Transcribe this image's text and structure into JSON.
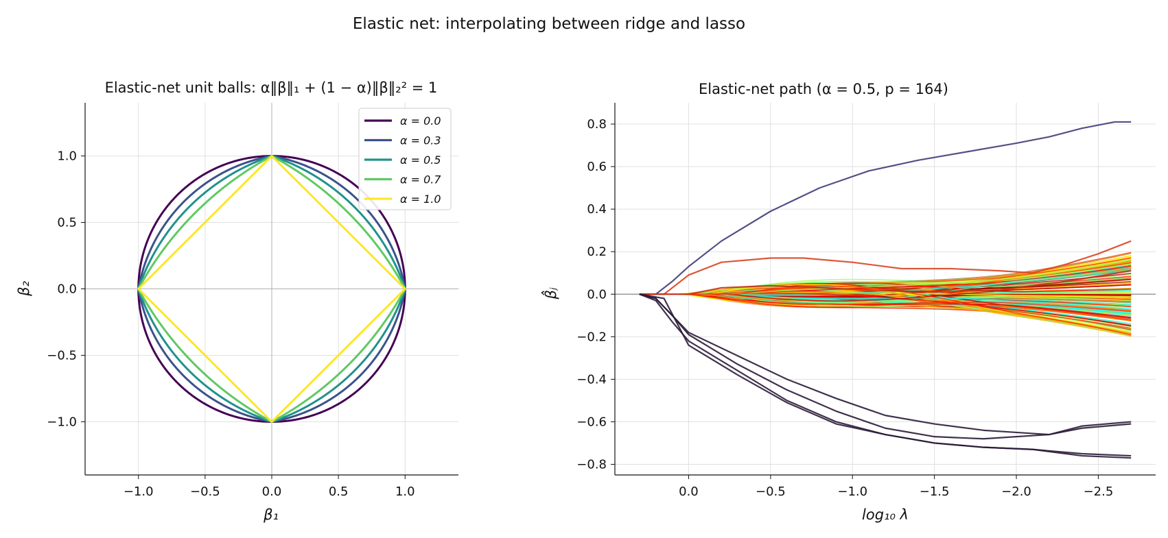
{
  "suptitle": "Elastic net: interpolating between ridge and lasso",
  "chart_data": [
    {
      "type": "line",
      "title": "Elastic-net unit balls:  α‖β‖₁ + (1 − α)‖β‖₂² = 1",
      "xlabel": "β₁",
      "ylabel": "β₂",
      "xlim": [
        -1.4,
        1.4
      ],
      "ylim": [
        -1.4,
        1.4
      ],
      "xticks": [
        -1.0,
        -0.5,
        0.0,
        0.5,
        1.0
      ],
      "xtick_labels": [
        "−1.0",
        "−0.5",
        "0.0",
        "0.5",
        "1.0"
      ],
      "yticks": [
        1.0,
        0.5,
        0.0,
        -0.5,
        -1.0
      ],
      "ytick_labels": [
        "1.0",
        "0.5",
        "0.0",
        "−0.5",
        "−1.0"
      ],
      "grid": true,
      "legend_position": "top-right",
      "series": [
        {
          "name": "α = 0.0",
          "alpha": 0.0,
          "color": "#440154"
        },
        {
          "name": "α = 0.3",
          "alpha": 0.3,
          "color": "#3b528b"
        },
        {
          "name": "α = 0.5",
          "alpha": 0.5,
          "color": "#21918c"
        },
        {
          "name": "α = 0.7",
          "alpha": 0.7,
          "color": "#5ec962"
        },
        {
          "name": "α = 1.0",
          "alpha": 1.0,
          "color": "#fde725"
        }
      ]
    },
    {
      "type": "line",
      "title": "Elastic-net path  (α = 0.5, p = 164)",
      "xlabel": "log₁₀ λ",
      "ylabel": "β̂ⱼ",
      "xlim": [
        0.45,
        -2.85
      ],
      "ylim": [
        -0.85,
        0.9
      ],
      "xaxis_inverted": true,
      "xticks": [
        0.0,
        -0.5,
        -1.0,
        -1.5,
        -2.0,
        -2.5
      ],
      "xtick_labels": [
        "0.0",
        "−0.5",
        "−1.0",
        "−1.5",
        "−2.0",
        "−2.5"
      ],
      "yticks": [
        0.8,
        0.6,
        0.4,
        0.2,
        0.0,
        -0.2,
        -0.4,
        -0.6,
        -0.8
      ],
      "ytick_labels": [
        "0.8",
        "0.6",
        "0.4",
        "0.2",
        "0.0",
        "−0.2",
        "−0.4",
        "−0.6",
        "−0.8"
      ],
      "grid": true,
      "approximate_series_count": 164,
      "highlighted_series": [
        {
          "color": "#3f3d7a",
          "points": [
            [
              0.3,
              0
            ],
            [
              0.2,
              0
            ],
            [
              0.1,
              0.06
            ],
            [
              0,
              0.13
            ],
            [
              -0.2,
              0.25
            ],
            [
              -0.5,
              0.39
            ],
            [
              -0.8,
              0.5
            ],
            [
              -1.1,
              0.58
            ],
            [
              -1.4,
              0.63
            ],
            [
              -1.7,
              0.67
            ],
            [
              -2.0,
              0.71
            ],
            [
              -2.2,
              0.74
            ],
            [
              -2.4,
              0.78
            ],
            [
              -2.6,
              0.81
            ],
            [
              -2.7,
              0.81
            ]
          ]
        },
        {
          "color": "#d94520",
          "points": [
            [
              0.3,
              0
            ],
            [
              0.15,
              0
            ],
            [
              0,
              0.09
            ],
            [
              -0.2,
              0.15
            ],
            [
              -0.5,
              0.17
            ],
            [
              -0.7,
              0.17
            ],
            [
              -1.0,
              0.15
            ],
            [
              -1.3,
              0.12
            ],
            [
              -1.6,
              0.12
            ],
            [
              -1.9,
              0.11
            ],
            [
              -2.1,
              0.1
            ],
            [
              -2.3,
              0.14
            ],
            [
              -2.5,
              0.19
            ],
            [
              -2.7,
              0.25
            ]
          ]
        },
        {
          "color": "#c0301a",
          "points": [
            [
              0.3,
              0
            ],
            [
              0,
              0
            ],
            [
              -0.2,
              0.03
            ],
            [
              -0.5,
              0.04
            ],
            [
              -0.8,
              0.03
            ],
            [
              -1.1,
              0.02
            ],
            [
              -1.5,
              0.01
            ],
            [
              -1.9,
              0.02
            ],
            [
              -2.3,
              0.06
            ],
            [
              -2.7,
              0.11
            ]
          ]
        },
        {
          "color": "#2b1b38",
          "points": [
            [
              0.3,
              0
            ],
            [
              0.2,
              -0.02
            ],
            [
              0.1,
              -0.1
            ],
            [
              0,
              -0.19
            ],
            [
              -0.3,
              -0.33
            ],
            [
              -0.6,
              -0.45
            ],
            [
              -0.9,
              -0.55
            ],
            [
              -1.2,
              -0.63
            ],
            [
              -1.5,
              -0.67
            ],
            [
              -1.8,
              -0.68
            ],
            [
              -2.0,
              -0.67
            ],
            [
              -2.2,
              -0.66
            ],
            [
              -2.4,
              -0.62
            ],
            [
              -2.7,
              -0.6
            ]
          ]
        },
        {
          "color": "#2b1b38",
          "points": [
            [
              0.3,
              0
            ],
            [
              0.2,
              -0.03
            ],
            [
              0.1,
              -0.13
            ],
            [
              0,
              -0.22
            ],
            [
              -0.3,
              -0.36
            ],
            [
              -0.6,
              -0.5
            ],
            [
              -0.9,
              -0.6
            ],
            [
              -1.2,
              -0.66
            ],
            [
              -1.5,
              -0.7
            ],
            [
              -1.8,
              -0.72
            ],
            [
              -2.1,
              -0.73
            ],
            [
              -2.4,
              -0.76
            ],
            [
              -2.7,
              -0.77
            ]
          ]
        },
        {
          "color": "#2b1b38",
          "points": [
            [
              0.3,
              0
            ],
            [
              0.2,
              -0.02
            ],
            [
              0,
              -0.18
            ],
            [
              -0.3,
              -0.29
            ],
            [
              -0.6,
              -0.4
            ],
            [
              -0.9,
              -0.49
            ],
            [
              -1.2,
              -0.57
            ],
            [
              -1.5,
              -0.61
            ],
            [
              -1.8,
              -0.64
            ],
            [
              -2.0,
              -0.65
            ],
            [
              -2.2,
              -0.66
            ],
            [
              -2.4,
              -0.63
            ],
            [
              -2.7,
              -0.61
            ]
          ]
        },
        {
          "color": "#2b1b38",
          "points": [
            [
              0.3,
              0
            ],
            [
              0.15,
              -0.02
            ],
            [
              0,
              -0.24
            ],
            [
              -0.3,
              -0.38
            ],
            [
              -0.6,
              -0.51
            ],
            [
              -0.9,
              -0.61
            ],
            [
              -1.2,
              -0.66
            ],
            [
              -1.5,
              -0.7
            ],
            [
              -1.8,
              -0.72
            ],
            [
              -2.1,
              -0.73
            ],
            [
              -2.4,
              -0.75
            ],
            [
              -2.7,
              -0.76
            ]
          ]
        }
      ],
      "bundle_series_summary": "remaining coefficients stay within about ±0.2, coloured in a jet-like palette from blue through green and yellow to dark red"
    }
  ]
}
